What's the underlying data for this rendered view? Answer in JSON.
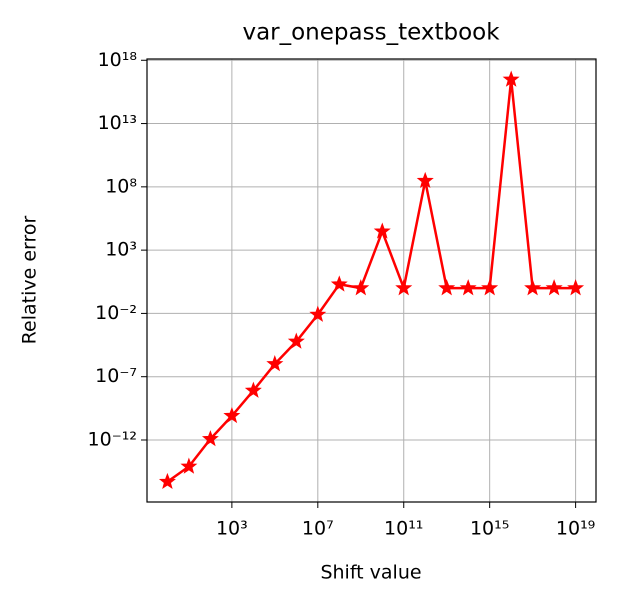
{
  "chart_data": {
    "type": "line",
    "title": "var_onepass_textbook",
    "xlabel": "Shift value",
    "ylabel": "Relative error",
    "xscale": "log",
    "yscale": "log",
    "grid": true,
    "marker": "star",
    "x": [
      1,
      10,
      100,
      1000.0,
      10000.0,
      100000.0,
      1000000.0,
      10000000.0,
      100000000.0,
      1000000000.0,
      10000000000.0,
      100000000000.0,
      1000000000000.0,
      10000000000000.0,
      100000000000000.0,
      1000000000000000.0,
      1e+16,
      1e+17,
      1e+18,
      1e+19
    ],
    "series": [
      {
        "name": "var_onepass_textbook",
        "color": "#ff0000",
        "values": [
          5e-16,
          8e-15,
          1.2e-12,
          8e-11,
          8e-09,
          1e-06,
          6e-05,
          0.008,
          2,
          1,
          30000.0,
          1,
          300000000.0,
          1,
          1,
          1,
          3e+16,
          1,
          1,
          1
        ]
      }
    ],
    "xlim": [
      0.112,
      8.9e+19
    ],
    "ylim": [
      1.26e-17,
      1.26e+18
    ],
    "xticks": [
      {
        "value": 1000.0,
        "label": "10³"
      },
      {
        "value": 10000000.0,
        "label": "10⁷"
      },
      {
        "value": 100000000000.0,
        "label": "10¹¹"
      },
      {
        "value": 1000000000000000.0,
        "label": "10¹⁵"
      },
      {
        "value": 1e+19,
        "label": "10¹⁹"
      }
    ],
    "yticks": [
      {
        "value": 1e-12,
        "label": "10⁻¹²"
      },
      {
        "value": 1e-07,
        "label": "10⁻⁷"
      },
      {
        "value": 0.01,
        "label": "10⁻²"
      },
      {
        "value": 1000.0,
        "label": "10³"
      },
      {
        "value": 100000000.0,
        "label": "10⁸"
      },
      {
        "value": 10000000000000.0,
        "label": "10¹³"
      },
      {
        "value": 1e+18,
        "label": "10¹⁸"
      }
    ]
  }
}
